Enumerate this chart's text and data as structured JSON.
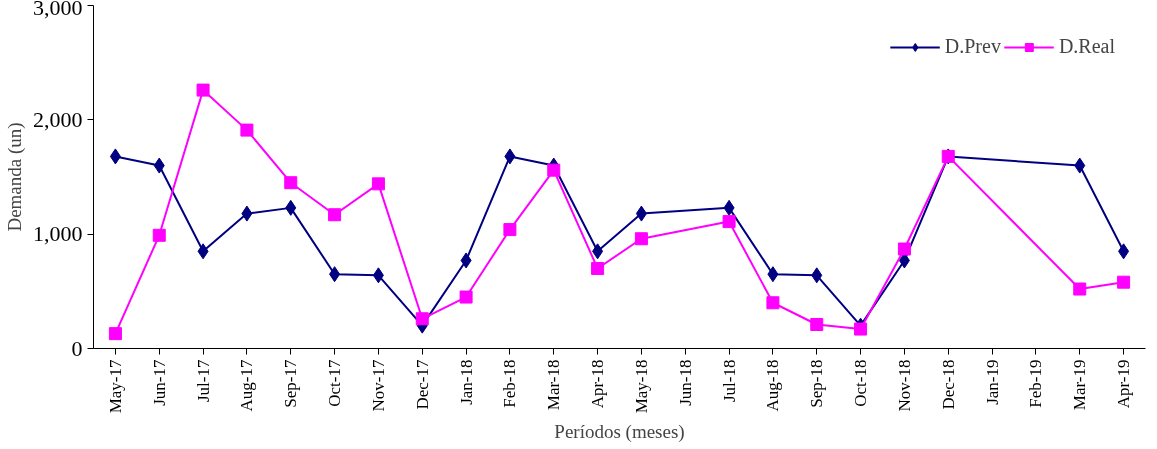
{
  "chart_data": {
    "type": "line",
    "xlabel": "Períodos (meses)",
    "ylabel": "Demanda (un)",
    "categories": [
      "May-17",
      "Jun-17",
      "Jul-17",
      "Aug-17",
      "Sep-17",
      "Oct-17",
      "Nov-17",
      "Dec-17",
      "Jan-18",
      "Feb-18",
      "Mar-18",
      "Apr-18",
      "May-18",
      "Jun-18",
      "Jul-18",
      "Aug-18",
      "Sep-18",
      "Oct-18",
      "Nov-18",
      "Dec-18",
      "Jan-19",
      "Feb-19",
      "Mar-19",
      "Apr-19"
    ],
    "series": [
      {
        "name": "D.Prev",
        "color": "#000080",
        "marker": "diamond",
        "values": [
          1680,
          1600,
          850,
          1180,
          1230,
          650,
          640,
          200,
          770,
          1680,
          1600,
          850,
          1180,
          null,
          1230,
          650,
          640,
          200,
          770,
          1680,
          null,
          null,
          1600,
          850
        ]
      },
      {
        "name": "D.Real",
        "color": "#ff00ff",
        "marker": "square",
        "values": [
          130,
          990,
          2260,
          1910,
          1450,
          1170,
          1440,
          260,
          450,
          1040,
          1560,
          700,
          960,
          null,
          1110,
          400,
          210,
          170,
          870,
          1680,
          null,
          null,
          520,
          580
        ]
      }
    ],
    "ylim": [
      0,
      3000
    ],
    "yticks": [
      0,
      {
        "value": 1000,
        "label": "1,000"
      },
      {
        "value": 2000,
        "label": "2,000"
      },
      {
        "value": 3000,
        "label": "3,000"
      }
    ],
    "grid": false,
    "legend": "top right",
    "line_style": "solid"
  }
}
